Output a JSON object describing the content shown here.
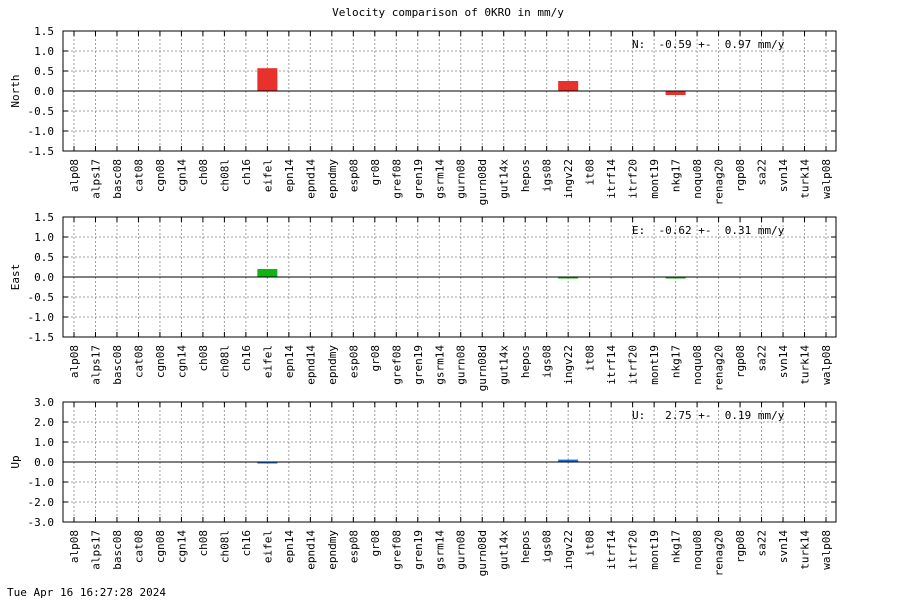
{
  "title": "Velocity comparison of 0KRO in mm/y",
  "footer": "Tue Apr 16 16:27:28 2024",
  "chart_data": {
    "type": "bar",
    "title": "Velocity comparison of 0KRO in mm/y",
    "categories": [
      "alp08",
      "alps17",
      "basc08",
      "cat08",
      "cgn08",
      "cgn14",
      "ch08",
      "ch08l",
      "ch16",
      "eifel",
      "epn14",
      "epnd14",
      "epndmy",
      "esp08",
      "gr08",
      "gref08",
      "gren19",
      "gsrm14",
      "gurn08",
      "gurn08d",
      "gut14x",
      "hepos",
      "igs08",
      "ingv22",
      "it08",
      "itrf14",
      "itrf20",
      "mont19",
      "nkg17",
      "noqu08",
      "renag20",
      "rgp08",
      "sa22",
      "svn14",
      "turk14",
      "walp08"
    ],
    "grid": true,
    "panels": [
      {
        "ylabel": "North",
        "ylim": [
          -1.5,
          1.5
        ],
        "ticks": [
          "1.5",
          "1.0",
          "0.5",
          "0.0",
          "-0.5",
          "-1.0",
          "-1.5"
        ],
        "tick_values": [
          1.5,
          1.0,
          0.5,
          0.0,
          -0.5,
          -1.0,
          -1.5
        ],
        "color": "#e8302c",
        "annotation": "N:  -0.59 +-  0.97 mm/y",
        "bars": [
          {
            "category": "eifel",
            "value": 0.57
          },
          {
            "category": "ingv22",
            "value": 0.25
          },
          {
            "category": "nkg17",
            "value": -0.1
          }
        ]
      },
      {
        "ylabel": "East",
        "ylim": [
          -1.5,
          1.5
        ],
        "ticks": [
          "1.5",
          "1.0",
          "0.5",
          "0.0",
          "-0.5",
          "-1.0",
          "-1.5"
        ],
        "tick_values": [
          1.5,
          1.0,
          0.5,
          0.0,
          -0.5,
          -1.0,
          -1.5
        ],
        "color": "#11b411",
        "annotation": "E:  -0.62 +-  0.31 mm/y",
        "bars": [
          {
            "category": "eifel",
            "value": 0.2
          },
          {
            "category": "ingv22",
            "value": -0.02
          },
          {
            "category": "nkg17",
            "value": -0.02
          }
        ]
      },
      {
        "ylabel": "Up",
        "ylim": [
          -3.0,
          3.0
        ],
        "ticks": [
          "3.0",
          "2.0",
          "1.0",
          "0.0",
          "-1.0",
          "-2.0",
          "-3.0"
        ],
        "tick_values": [
          3.0,
          2.0,
          1.0,
          0.0,
          -1.0,
          -2.0,
          -3.0
        ],
        "color": "#1c6fd8",
        "annotation": "U:   2.75 +-  0.19 mm/y",
        "bars": [
          {
            "category": "eifel",
            "value": -0.05
          },
          {
            "category": "ingv22",
            "value": 0.12
          }
        ]
      }
    ]
  }
}
